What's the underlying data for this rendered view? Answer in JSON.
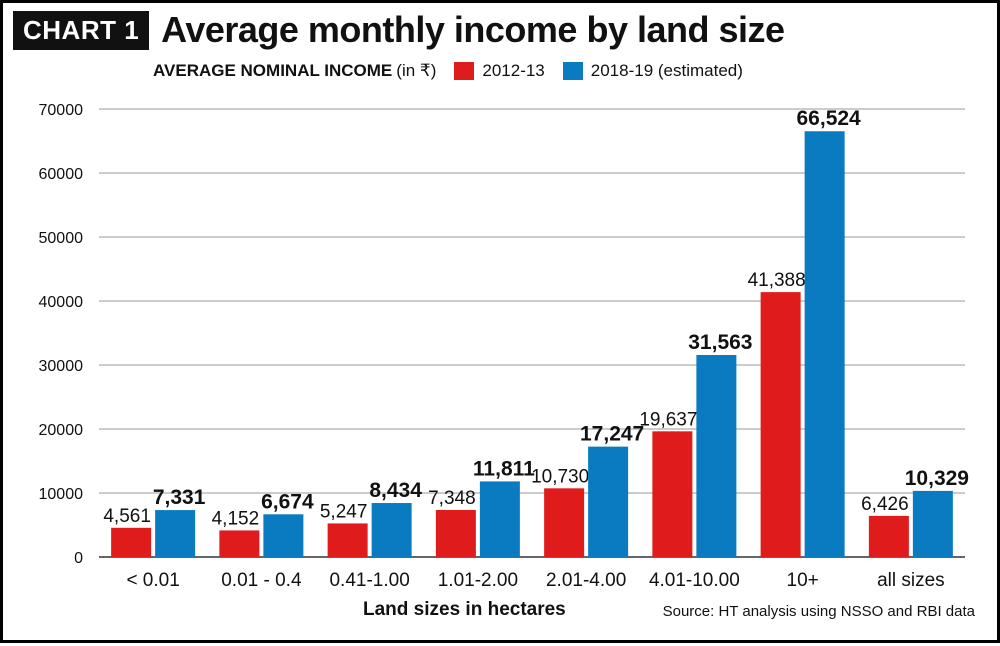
{
  "header": {
    "tag": "CHART 1",
    "title": "Average monthly income by land size"
  },
  "legend": {
    "subtitle": "AVERAGE NOMINAL INCOME",
    "unit": "(in ₹)",
    "items": [
      {
        "label": "2012-13",
        "color": "#e01b1b"
      },
      {
        "label": "2018-19 (estimated)",
        "color": "#0b7bc1"
      }
    ]
  },
  "footer": {
    "xlabel": "Land sizes in hectares",
    "source": "Source: HT analysis using NSSO and RBI data"
  },
  "chart_data": {
    "type": "bar",
    "title": "Average monthly income by land size",
    "xlabel": "Land sizes in hectares",
    "ylabel": "",
    "ylim": [
      0,
      70000
    ],
    "yticks": [
      0,
      10000,
      20000,
      30000,
      40000,
      50000,
      60000,
      70000
    ],
    "grid": true,
    "legend_position": "top",
    "categories": [
      "< 0.01",
      "0.01 - 0.4",
      "0.41-1.00",
      "1.01-2.00",
      "2.01-4.00",
      "4.01-10.00",
      "10+",
      "all sizes"
    ],
    "series": [
      {
        "name": "2012-13",
        "color": "#e01b1b",
        "values": [
          4561,
          4152,
          5247,
          7348,
          10730,
          19637,
          41388,
          6426
        ],
        "labels": [
          "4,561",
          "4,152",
          "5,247",
          "7,348",
          "10,730",
          "19,637",
          "41,388",
          "6,426"
        ],
        "label_bold": false
      },
      {
        "name": "2018-19 (estimated)",
        "color": "#0b7bc1",
        "values": [
          7331,
          6674,
          8434,
          11811,
          17247,
          31563,
          66524,
          10329
        ],
        "labels": [
          "7,331",
          "6,674",
          "8,434",
          "11,811",
          "17,247",
          "31,563",
          "66,524",
          "10,329"
        ],
        "label_bold": true
      }
    ]
  }
}
